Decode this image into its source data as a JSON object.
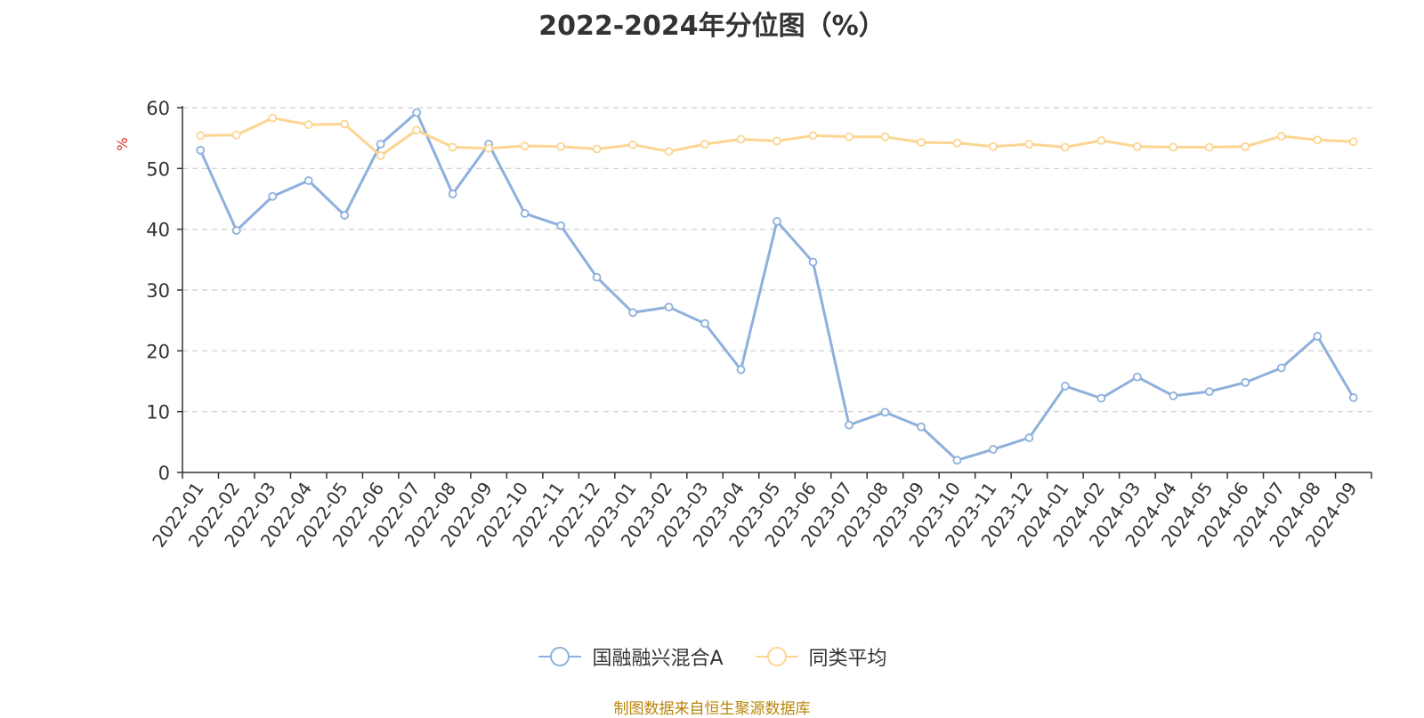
{
  "chart_data": {
    "type": "line",
    "title": "2022-2024年分位图（%）",
    "ylabel": "%",
    "xlabel": "",
    "ylim": [
      0,
      60
    ],
    "yticks": [
      0,
      10,
      20,
      30,
      40,
      50,
      60
    ],
    "grid": true,
    "legend_position": "bottom",
    "categories": [
      "2022-01",
      "2022-02",
      "2022-03",
      "2022-04",
      "2022-05",
      "2022-06",
      "2022-07",
      "2022-08",
      "2022-09",
      "2022-10",
      "2022-11",
      "2022-12",
      "2023-01",
      "2023-02",
      "2023-03",
      "2023-04",
      "2023-05",
      "2023-06",
      "2023-07",
      "2023-08",
      "2023-09",
      "2023-10",
      "2023-11",
      "2023-12",
      "2024-01",
      "2024-02",
      "2024-03",
      "2024-04",
      "2024-05",
      "2024-06",
      "2024-07",
      "2024-08",
      "2024-09"
    ],
    "series": [
      {
        "name": "国融融兴混合A",
        "color": "#8eb0dc",
        "values": [
          53.0,
          39.8,
          45.4,
          48.0,
          42.3,
          54.0,
          59.2,
          45.8,
          54.0,
          42.6,
          40.6,
          32.1,
          26.3,
          27.2,
          24.5,
          16.9,
          41.3,
          34.6,
          7.8,
          9.9,
          7.5,
          2.0,
          3.8,
          5.7,
          14.2,
          12.2,
          15.7,
          12.6,
          13.3,
          14.8,
          17.2,
          22.4,
          12.3
        ]
      },
      {
        "name": "同类平均",
        "color": "#fcd592",
        "values": [
          55.4,
          55.5,
          58.3,
          57.2,
          57.3,
          52.1,
          56.3,
          53.5,
          53.3,
          53.7,
          53.6,
          53.2,
          53.9,
          52.8,
          54.0,
          54.8,
          54.5,
          55.4,
          55.2,
          55.2,
          54.3,
          54.2,
          53.6,
          54.0,
          53.5,
          54.6,
          53.6,
          53.5,
          53.5,
          53.6,
          55.3,
          54.7,
          54.4
        ]
      }
    ],
    "source_note": "制图数据来自恒生聚源数据库",
    "source_color": "#b8860b",
    "ylabel_color": "#e0302a"
  }
}
